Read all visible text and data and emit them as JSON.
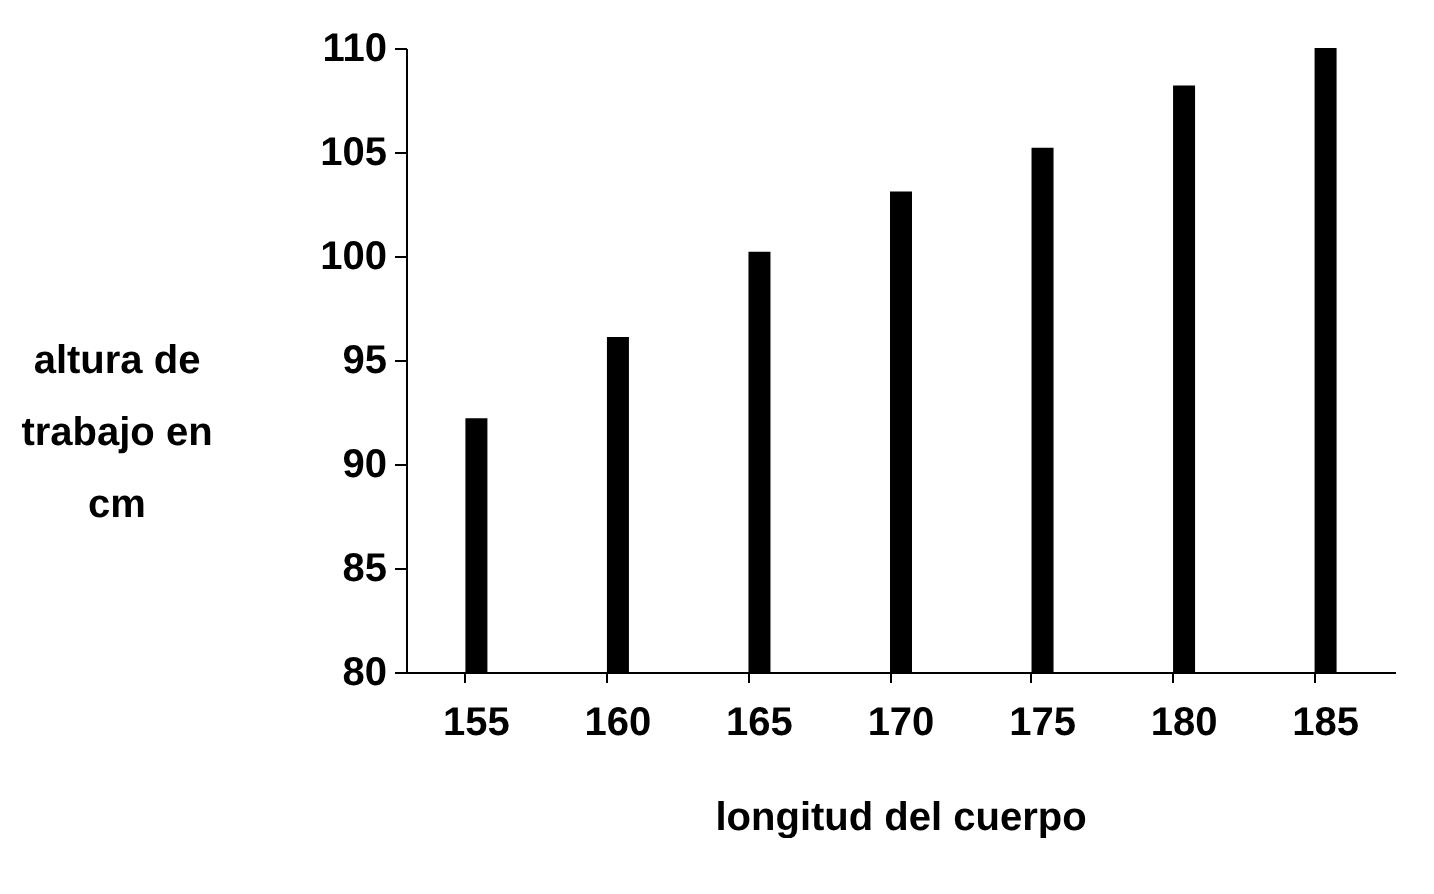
{
  "chart_data": {
    "type": "bar",
    "xlabel": "longitud del cuerpo",
    "ylabel": "altura de trabajo en cm",
    "categories": [
      "155",
      "160",
      "165",
      "170",
      "175",
      "180",
      "185"
    ],
    "values": [
      92.2,
      96.1,
      100.2,
      103.1,
      105.2,
      108.2,
      110
    ],
    "color": "#000000",
    "ylim": [
      80,
      110
    ],
    "yticks": [
      80,
      85,
      90,
      95,
      100,
      105,
      110
    ],
    "grid": false
  }
}
